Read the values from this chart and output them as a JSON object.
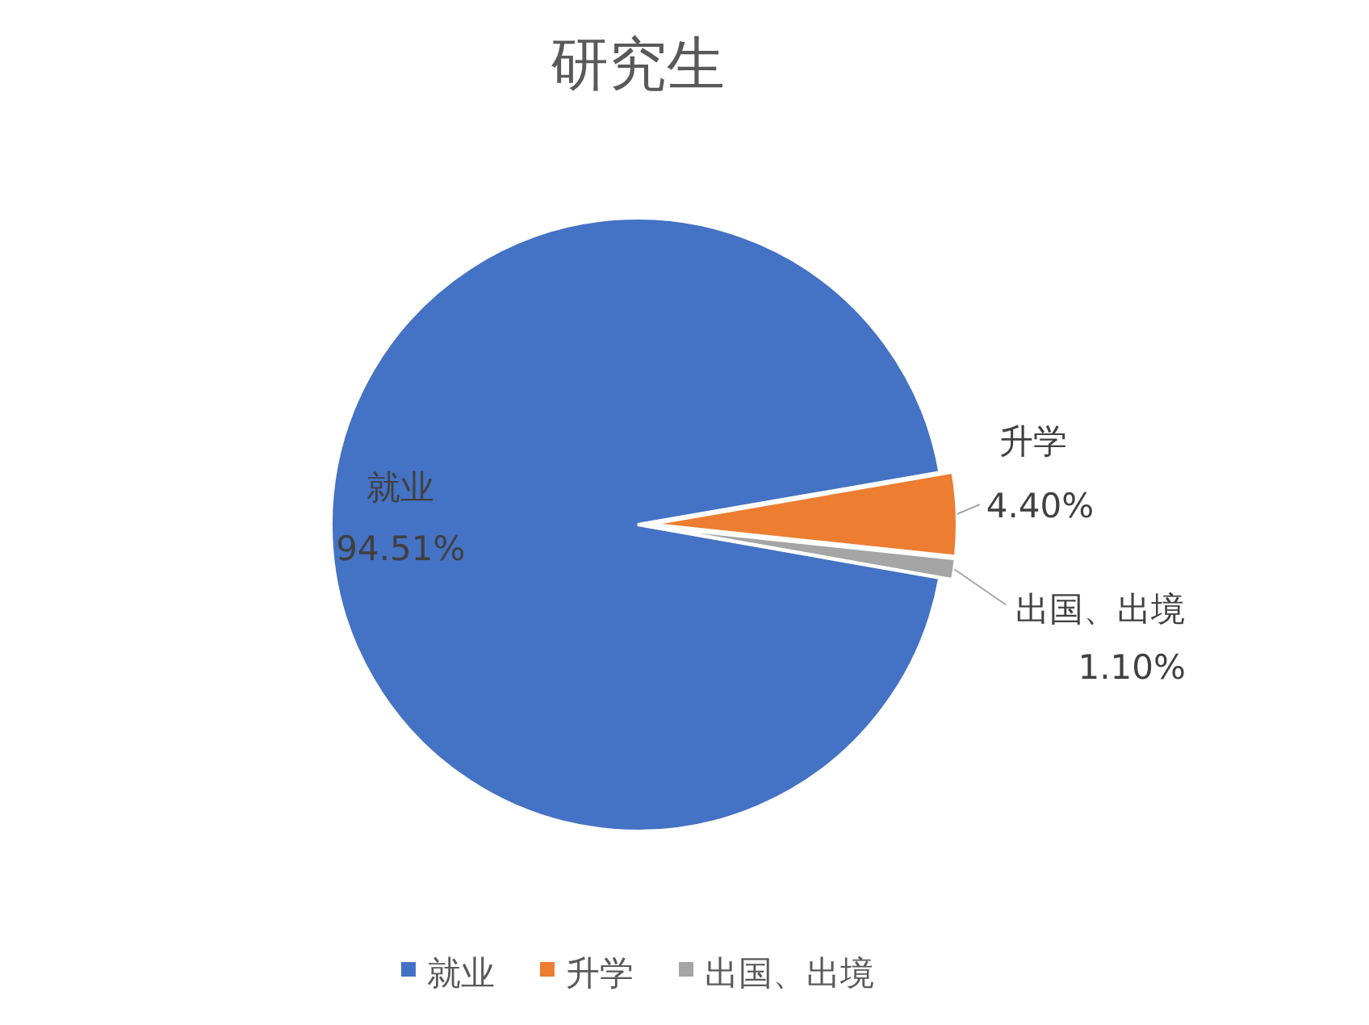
{
  "chart_data": {
    "type": "pie",
    "title": "研究生",
    "categories": [
      "就业",
      "升学",
      "出国、出境"
    ],
    "values": [
      94.51,
      4.4,
      1.1
    ],
    "colors": [
      "#4472c4",
      "#ed7d31",
      "#a5a5a5"
    ],
    "value_labels": [
      "94.51%",
      "4.40%",
      "1.10%"
    ],
    "legend": "bottom"
  }
}
